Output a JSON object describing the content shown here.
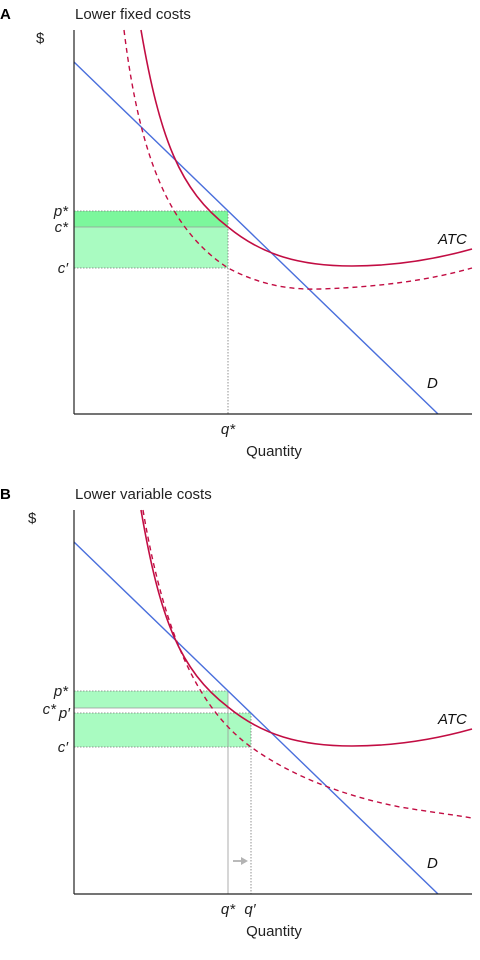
{
  "panels": [
    {
      "letter": "A",
      "title": "Lower fixed costs",
      "y_axis_label": "$",
      "x_axis_label": "Quantity",
      "price_ticks": {
        "p": "p*",
        "c": "c*",
        "c_new": "c′"
      },
      "quantity_ticks": {
        "q": "q*"
      },
      "curve_labels": {
        "atc": "ATC",
        "demand": "D"
      }
    },
    {
      "letter": "B",
      "title": "Lower variable costs",
      "y_axis_label": "$",
      "x_axis_label": "Quantity",
      "price_ticks": {
        "p": "p*",
        "c": "c*",
        "p_new": "p′",
        "c_new": "c′"
      },
      "quantity_ticks": {
        "q": "q*",
        "q_new": "q′"
      },
      "curve_labels": {
        "atc": "ATC",
        "demand": "D"
      }
    }
  ],
  "colors": {
    "demand": "#4a6fdc",
    "atc": "#c20d43",
    "profit_original": "#7cf79c",
    "profit_new": "#a9fbc1",
    "arrow": "#b3b3b3"
  }
}
